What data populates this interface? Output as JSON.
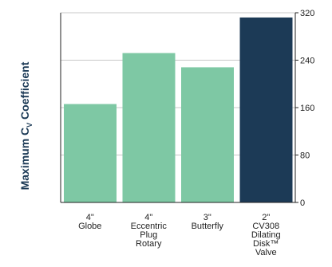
{
  "chart_data": {
    "type": "bar",
    "ylabel_main": "Maximum C",
    "ylabel_subscript": "V",
    "ylabel_suffix": " Coefficient",
    "ylim": [
      0,
      320
    ],
    "yticks": [
      0,
      80,
      160,
      240,
      320
    ],
    "y_axis_position": "right",
    "grid": true,
    "categories": [
      [
        "4\"",
        "Globe"
      ],
      [
        "4\"",
        "Eccentric",
        "Plug",
        "Rotary"
      ],
      [
        "3\"",
        "Butterfly"
      ],
      [
        "2\"",
        "CV308",
        "Dilating",
        "Disk™",
        "Valve"
      ]
    ],
    "values": [
      166,
      252,
      228,
      312
    ],
    "colors": [
      "#7ec8a4",
      "#7ec8a4",
      "#7ec8a4",
      "#1c3a56"
    ],
    "gridline_color": "#c8c8c8",
    "axis_color": "#222222"
  }
}
